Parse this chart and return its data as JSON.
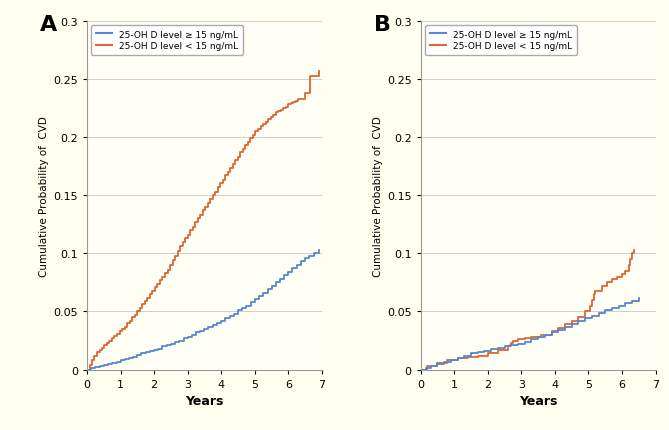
{
  "background_color": "#fffff0",
  "panel_bg_color": "#fffff5",
  "blue_color": "#5588cc",
  "orange_color": "#dd6633",
  "ylabel": "Cumulative Probability of  CVD",
  "xlabel": "Years",
  "legend_high": "25-OH D level ≥ 15 ng/mL",
  "legend_low": "25-OH D level < 15 ng/mL",
  "panel_A_label": "A",
  "panel_B_label": "B",
  "ylim_A": [
    0,
    0.3
  ],
  "ylim_B": [
    0,
    0.3
  ],
  "xlim_A": [
    0,
    7
  ],
  "xlim_B": [
    0,
    7
  ],
  "yticks": [
    0,
    0.05,
    0.1,
    0.15,
    0.2,
    0.25,
    0.3
  ],
  "xticks": [
    0,
    1,
    2,
    3,
    4,
    5,
    6,
    7
  ],
  "panel_A_blue_x": [
    0,
    0.12,
    0.25,
    0.38,
    0.5,
    0.62,
    0.75,
    0.88,
    1.0,
    1.12,
    1.25,
    1.38,
    1.5,
    1.62,
    1.75,
    1.88,
    2.0,
    2.12,
    2.25,
    2.38,
    2.5,
    2.62,
    2.75,
    2.88,
    3.0,
    3.12,
    3.25,
    3.38,
    3.5,
    3.62,
    3.75,
    3.88,
    4.0,
    4.12,
    4.25,
    4.38,
    4.5,
    4.62,
    4.75,
    4.88,
    5.0,
    5.12,
    5.25,
    5.38,
    5.5,
    5.62,
    5.75,
    5.88,
    6.0,
    6.12,
    6.25,
    6.38,
    6.5,
    6.62,
    6.75,
    6.9
  ],
  "panel_A_blue_y": [
    0,
    0.001,
    0.002,
    0.003,
    0.004,
    0.005,
    0.006,
    0.007,
    0.008,
    0.009,
    0.01,
    0.011,
    0.013,
    0.014,
    0.015,
    0.016,
    0.017,
    0.018,
    0.02,
    0.021,
    0.022,
    0.024,
    0.025,
    0.027,
    0.028,
    0.03,
    0.032,
    0.033,
    0.035,
    0.037,
    0.038,
    0.04,
    0.042,
    0.044,
    0.046,
    0.048,
    0.051,
    0.053,
    0.055,
    0.058,
    0.061,
    0.063,
    0.066,
    0.069,
    0.072,
    0.075,
    0.078,
    0.081,
    0.084,
    0.087,
    0.09,
    0.093,
    0.096,
    0.098,
    0.1,
    0.103
  ],
  "panel_A_orange_x": [
    0,
    0.08,
    0.15,
    0.22,
    0.3,
    0.38,
    0.45,
    0.52,
    0.6,
    0.67,
    0.75,
    0.82,
    0.9,
    0.97,
    1.05,
    1.12,
    1.2,
    1.27,
    1.35,
    1.42,
    1.5,
    1.57,
    1.65,
    1.72,
    1.8,
    1.87,
    1.95,
    2.02,
    2.1,
    2.17,
    2.25,
    2.32,
    2.4,
    2.47,
    2.55,
    2.62,
    2.7,
    2.77,
    2.85,
    2.92,
    3.0,
    3.08,
    3.15,
    3.22,
    3.3,
    3.38,
    3.45,
    3.52,
    3.6,
    3.67,
    3.75,
    3.82,
    3.9,
    3.97,
    4.05,
    4.12,
    4.2,
    4.27,
    4.35,
    4.42,
    4.5,
    4.57,
    4.65,
    4.72,
    4.8,
    4.87,
    4.95,
    5.02,
    5.1,
    5.17,
    5.25,
    5.32,
    5.4,
    5.47,
    5.55,
    5.62,
    5.7,
    5.77,
    5.85,
    5.92,
    6.0,
    6.07,
    6.15,
    6.22,
    6.3,
    6.5,
    6.65,
    6.9
  ],
  "panel_A_orange_y": [
    0,
    0.004,
    0.008,
    0.012,
    0.015,
    0.017,
    0.019,
    0.021,
    0.023,
    0.025,
    0.027,
    0.029,
    0.031,
    0.033,
    0.035,
    0.037,
    0.04,
    0.042,
    0.045,
    0.047,
    0.05,
    0.053,
    0.056,
    0.059,
    0.062,
    0.065,
    0.068,
    0.071,
    0.074,
    0.077,
    0.08,
    0.083,
    0.086,
    0.09,
    0.094,
    0.098,
    0.102,
    0.106,
    0.11,
    0.113,
    0.116,
    0.12,
    0.123,
    0.127,
    0.13,
    0.133,
    0.137,
    0.14,
    0.143,
    0.147,
    0.15,
    0.153,
    0.157,
    0.16,
    0.163,
    0.167,
    0.17,
    0.173,
    0.177,
    0.18,
    0.183,
    0.187,
    0.19,
    0.193,
    0.196,
    0.199,
    0.202,
    0.205,
    0.207,
    0.209,
    0.211,
    0.213,
    0.215,
    0.217,
    0.219,
    0.221,
    0.222,
    0.223,
    0.225,
    0.226,
    0.228,
    0.229,
    0.23,
    0.231,
    0.233,
    0.238,
    0.252,
    0.257
  ],
  "panel_B_blue_x": [
    0,
    0.15,
    0.3,
    0.5,
    0.7,
    0.9,
    1.1,
    1.3,
    1.5,
    1.7,
    1.9,
    2.1,
    2.3,
    2.5,
    2.7,
    2.9,
    3.1,
    3.3,
    3.5,
    3.7,
    3.9,
    4.1,
    4.3,
    4.5,
    4.7,
    4.9,
    5.1,
    5.3,
    5.5,
    5.7,
    5.9,
    6.1,
    6.3,
    6.5
  ],
  "panel_B_blue_y": [
    0,
    0.001,
    0.003,
    0.005,
    0.007,
    0.008,
    0.01,
    0.012,
    0.014,
    0.015,
    0.016,
    0.018,
    0.019,
    0.02,
    0.021,
    0.022,
    0.024,
    0.026,
    0.028,
    0.03,
    0.032,
    0.034,
    0.037,
    0.039,
    0.042,
    0.044,
    0.046,
    0.049,
    0.051,
    0.053,
    0.055,
    0.057,
    0.059,
    0.062
  ],
  "panel_B_orange_x": [
    0,
    0.2,
    0.5,
    0.8,
    1.1,
    1.4,
    1.7,
    2.0,
    2.3,
    2.6,
    2.65,
    2.7,
    2.75,
    2.9,
    3.1,
    3.3,
    3.6,
    3.9,
    4.1,
    4.3,
    4.5,
    4.7,
    4.9,
    5.05,
    5.1,
    5.15,
    5.2,
    5.4,
    5.55,
    5.7,
    5.85,
    6.0,
    6.1,
    6.2,
    6.25,
    6.3,
    6.35
  ],
  "panel_B_orange_y": [
    0,
    0.003,
    0.006,
    0.008,
    0.01,
    0.011,
    0.012,
    0.014,
    0.017,
    0.02,
    0.021,
    0.023,
    0.025,
    0.026,
    0.027,
    0.028,
    0.03,
    0.033,
    0.036,
    0.039,
    0.042,
    0.045,
    0.05,
    0.055,
    0.06,
    0.065,
    0.068,
    0.072,
    0.075,
    0.078,
    0.08,
    0.082,
    0.085,
    0.09,
    0.095,
    0.1,
    0.103
  ]
}
